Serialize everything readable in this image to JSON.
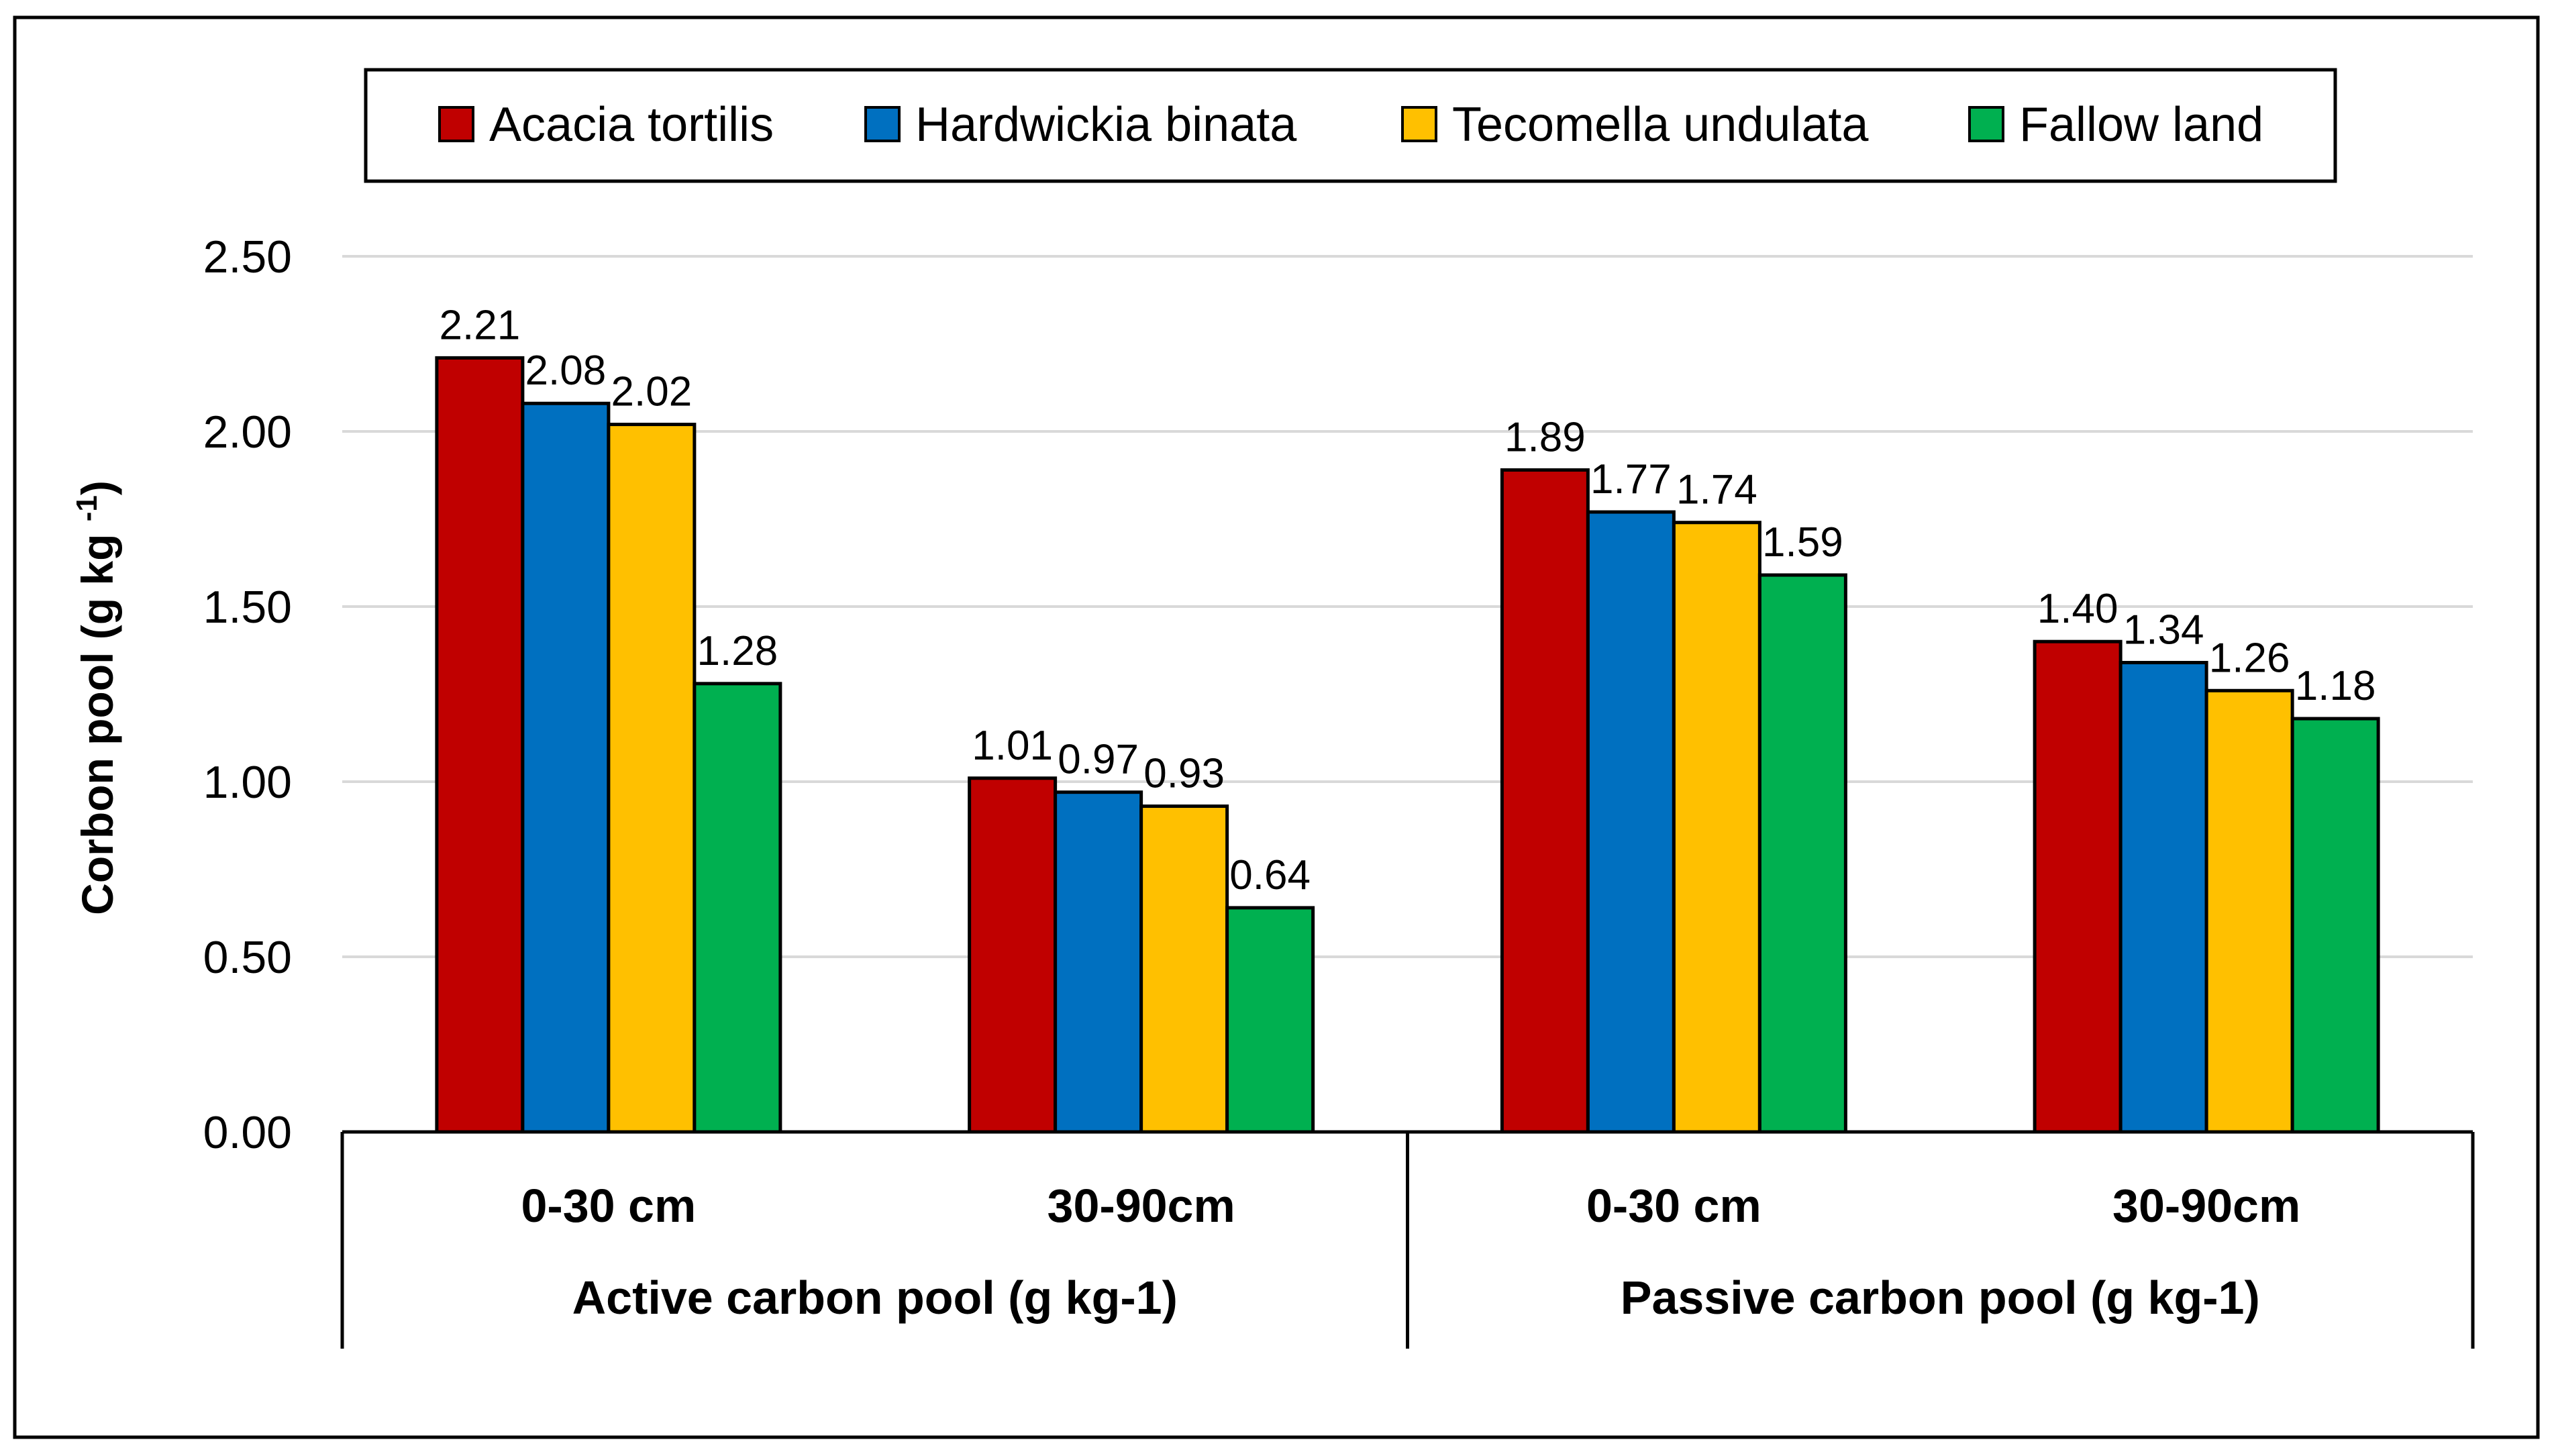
{
  "chart_data": {
    "type": "bar",
    "title": "",
    "ylabel": "Corbon pool (g kg ",
    "ylabel_superscript": "-1",
    "ylabel_close": ")",
    "ylim": [
      0,
      2.5
    ],
    "yticks": [
      "0.00",
      "0.50",
      "1.00",
      "1.50",
      "2.00",
      "2.50"
    ],
    "ytick_values": [
      0,
      0.5,
      1.0,
      1.5,
      2.0,
      2.5
    ],
    "grid": true,
    "legend_position": "top",
    "groups": [
      {
        "label": "Active carbon pool (g kg-1)",
        "categories": [
          "0-30 cm",
          "30-90cm"
        ]
      },
      {
        "label": "Passive carbon pool (g kg-1)",
        "categories": [
          "0-30 cm",
          "30-90cm"
        ]
      }
    ],
    "categories": [
      "0-30 cm",
      "30-90cm",
      "0-30 cm",
      "30-90cm"
    ],
    "series": [
      {
        "name": "Acacia tortilis",
        "color": "#C00000",
        "values": [
          2.21,
          1.01,
          1.89,
          1.4
        ],
        "labels": [
          "2.21",
          "1.01",
          "1.89",
          "1.40"
        ]
      },
      {
        "name": "Hardwickia binata",
        "color": "#0070C0",
        "values": [
          2.08,
          0.97,
          1.77,
          1.34
        ],
        "labels": [
          "2.08",
          "0.97",
          "1.77",
          "1.34"
        ]
      },
      {
        "name": "Tecomella undulata",
        "color": "#FFC000",
        "values": [
          2.02,
          0.93,
          1.74,
          1.26
        ],
        "labels": [
          "2.02",
          "0.93",
          "1.74",
          "1.26"
        ]
      },
      {
        "name": "Fallow land",
        "color": "#00B050",
        "values": [
          1.28,
          0.64,
          1.59,
          1.18
        ],
        "labels": [
          "1.28",
          "0.64",
          "1.59",
          "1.18"
        ]
      }
    ]
  }
}
